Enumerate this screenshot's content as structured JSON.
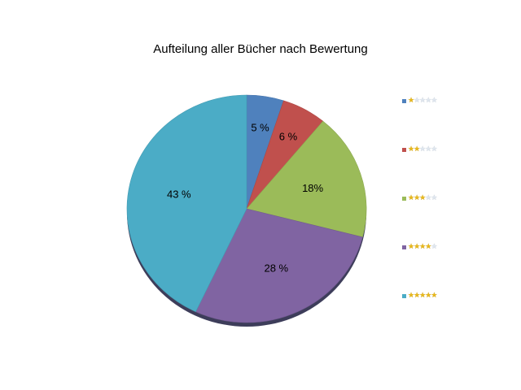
{
  "chart_data": {
    "type": "pie",
    "title": "Aufteilung aller Bücher nach Bewertung",
    "categories": [
      "1 Stern",
      "2 Sterne",
      "3 Sterne",
      "4 Sterne",
      "5 Sterne"
    ],
    "values": [
      5,
      6,
      18,
      28,
      43
    ],
    "labels": [
      "5 %",
      "6 %",
      "18%",
      "28 %",
      "43 %"
    ],
    "colors": [
      "#4f81bd",
      "#c0504d",
      "#9bbb59",
      "#8064a2",
      "#4bacc6"
    ],
    "legend_stars": [
      1,
      2,
      3,
      4,
      5
    ],
    "legend_max_stars": 5,
    "legend_position": "right",
    "start_angle": "top",
    "direction": "clockwise"
  }
}
